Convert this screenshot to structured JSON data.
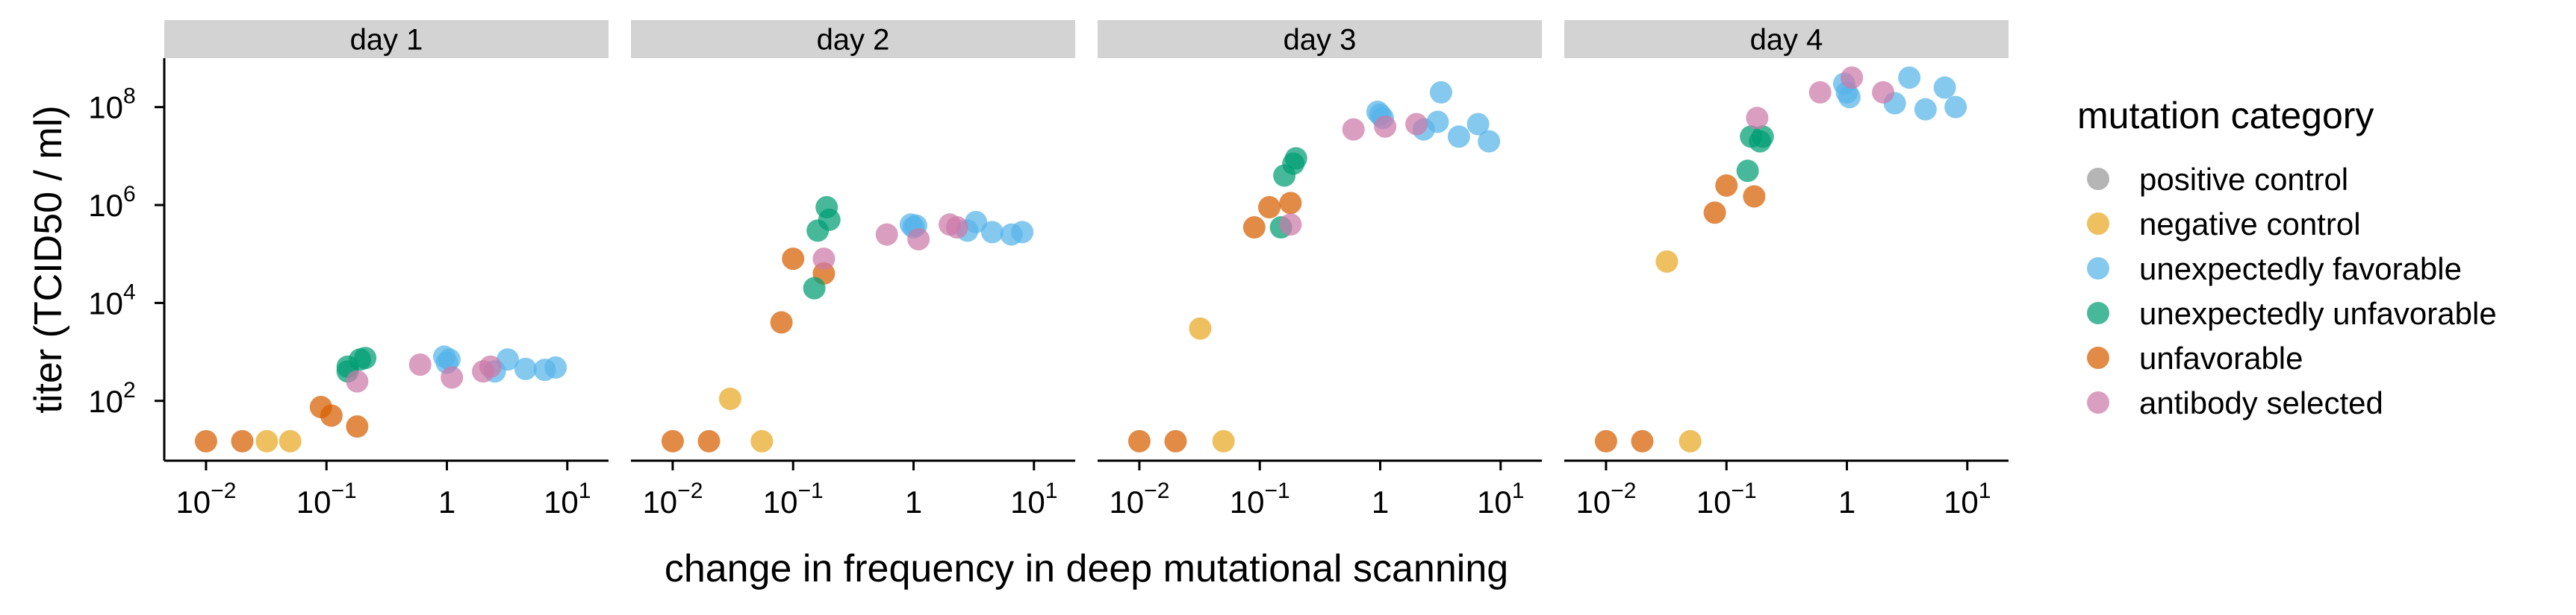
{
  "chart_data": {
    "type": "scatter",
    "facets": [
      "day 1",
      "day 2",
      "day 3",
      "day 4"
    ],
    "xlabel": "change in frequency in deep mutational scanning",
    "ylabel": "titer (TCID50 / ml)",
    "x_scale": "log10",
    "y_scale": "log10",
    "xlim": [
      0.0045,
      22
    ],
    "ylim": [
      6,
      1000000000
    ],
    "x_ticks": [
      {
        "value": 0.01,
        "base": "10",
        "exp": "−2"
      },
      {
        "value": 0.1,
        "base": "10",
        "exp": "−1"
      },
      {
        "value": 1,
        "base": "1",
        "exp": ""
      },
      {
        "value": 10,
        "base": "10",
        "exp": "1"
      }
    ],
    "y_ticks": [
      {
        "value": 100,
        "base": "10",
        "exp": "2"
      },
      {
        "value": 10000,
        "base": "10",
        "exp": "4"
      },
      {
        "value": 1000000,
        "base": "10",
        "exp": "6"
      },
      {
        "value": 100000000,
        "base": "10",
        "exp": "8"
      }
    ],
    "legend": {
      "title": "mutation category",
      "position": "right",
      "entries": [
        {
          "label": "positive control",
          "color": "#999999"
        },
        {
          "label": "negative control",
          "color": "#E8A821"
        },
        {
          "label": "unexpectedly favorable",
          "color": "#56B4E9"
        },
        {
          "label": "unexpectedly unfavorable",
          "color": "#009E73"
        },
        {
          "label": "unfavorable",
          "color": "#D55E00"
        },
        {
          "label": "antibody selected",
          "color": "#CC79A7"
        }
      ]
    },
    "series": [
      {
        "category": "negative control",
        "facets": [
          [
            [
              0.032,
              15
            ],
            [
              0.05,
              15
            ]
          ],
          [
            [
              0.03,
              110
            ],
            [
              0.055,
              15
            ]
          ],
          [
            [
              0.032,
              3000
            ],
            [
              0.05,
              15
            ]
          ],
          [
            [
              0.032,
              70000
            ],
            [
              0.05,
              15
            ]
          ]
        ]
      },
      {
        "category": "unfavorable",
        "facets": [
          [
            [
              0.01,
              15
            ],
            [
              0.02,
              15
            ],
            [
              0.09,
              75
            ],
            [
              0.11,
              50
            ],
            [
              0.18,
              30
            ]
          ],
          [
            [
              0.01,
              15
            ],
            [
              0.02,
              15
            ],
            [
              0.08,
              4000
            ],
            [
              0.1,
              80000
            ],
            [
              0.18,
              40000
            ]
          ],
          [
            [
              0.01,
              15
            ],
            [
              0.02,
              15
            ],
            [
              0.09,
              350000
            ],
            [
              0.12,
              900000
            ],
            [
              0.18,
              1100000
            ]
          ],
          [
            [
              0.01,
              15
            ],
            [
              0.02,
              15
            ],
            [
              0.08,
              700000
            ],
            [
              0.1,
              2500000
            ],
            [
              0.17,
              1500000
            ]
          ]
        ]
      },
      {
        "category": "unexpectedly unfavorable",
        "facets": [
          [
            [
              0.15,
              500
            ],
            [
              0.15,
              400
            ],
            [
              0.19,
              700
            ],
            [
              0.21,
              750
            ]
          ],
          [
            [
              0.15,
              20000
            ],
            [
              0.16,
              300000
            ],
            [
              0.19,
              900000
            ],
            [
              0.2,
              500000
            ]
          ],
          [
            [
              0.15,
              350000
            ],
            [
              0.16,
              4000000
            ],
            [
              0.19,
              7000000
            ],
            [
              0.2,
              9000000
            ]
          ],
          [
            [
              0.15,
              5000000
            ],
            [
              0.16,
              25000000
            ],
            [
              0.19,
              20000000
            ],
            [
              0.2,
              25000000
            ]
          ]
        ]
      },
      {
        "category": "unexpectedly favorable",
        "facets": [
          [
            [
              0.95,
              800
            ],
            [
              1.0,
              600
            ],
            [
              1.05,
              700
            ],
            [
              2.5,
              400
            ],
            [
              3.2,
              700
            ],
            [
              4.5,
              450
            ],
            [
              6.5,
              430
            ],
            [
              8,
              480
            ]
          ],
          [
            [
              0.95,
              400000
            ],
            [
              1.0,
              350000
            ],
            [
              1.05,
              380000
            ],
            [
              2.8,
              300000
            ],
            [
              3.3,
              450000
            ],
            [
              4.5,
              280000
            ],
            [
              6.5,
              250000
            ],
            [
              8,
              280000
            ]
          ],
          [
            [
              0.95,
              80000000
            ],
            [
              1.0,
              70000000
            ],
            [
              1.05,
              60000000
            ],
            [
              2.3,
              35000000
            ],
            [
              3.0,
              50000000
            ],
            [
              3.2,
              200000000
            ],
            [
              4.5,
              25000000
            ],
            [
              6.5,
              45000000
            ],
            [
              8,
              20000000
            ]
          ],
          [
            [
              0.95,
              300000000
            ],
            [
              1.0,
              200000000
            ],
            [
              1.05,
              160000000
            ],
            [
              2.5,
              120000000
            ],
            [
              3.3,
              400000000
            ],
            [
              4.5,
              90000000
            ],
            [
              6.5,
              250000000
            ],
            [
              8,
              100000000
            ]
          ]
        ]
      },
      {
        "category": "antibody selected",
        "facets": [
          [
            [
              0.18,
              250
            ],
            [
              0.6,
              550
            ],
            [
              1.1,
              300
            ],
            [
              2.0,
              400
            ],
            [
              2.3,
              500
            ]
          ],
          [
            [
              0.18,
              80000
            ],
            [
              0.6,
              250000
            ],
            [
              1.1,
              200000
            ],
            [
              2.0,
              400000
            ],
            [
              2.3,
              350000
            ]
          ],
          [
            [
              0.18,
              400000
            ],
            [
              0.6,
              35000000
            ],
            [
              1.1,
              40000000
            ],
            [
              2.0,
              45000000
            ]
          ],
          [
            [
              0.18,
              60000000
            ],
            [
              0.6,
              200000000
            ],
            [
              1.1,
              400000000
            ],
            [
              2.0,
              200000000
            ]
          ]
        ]
      }
    ]
  }
}
